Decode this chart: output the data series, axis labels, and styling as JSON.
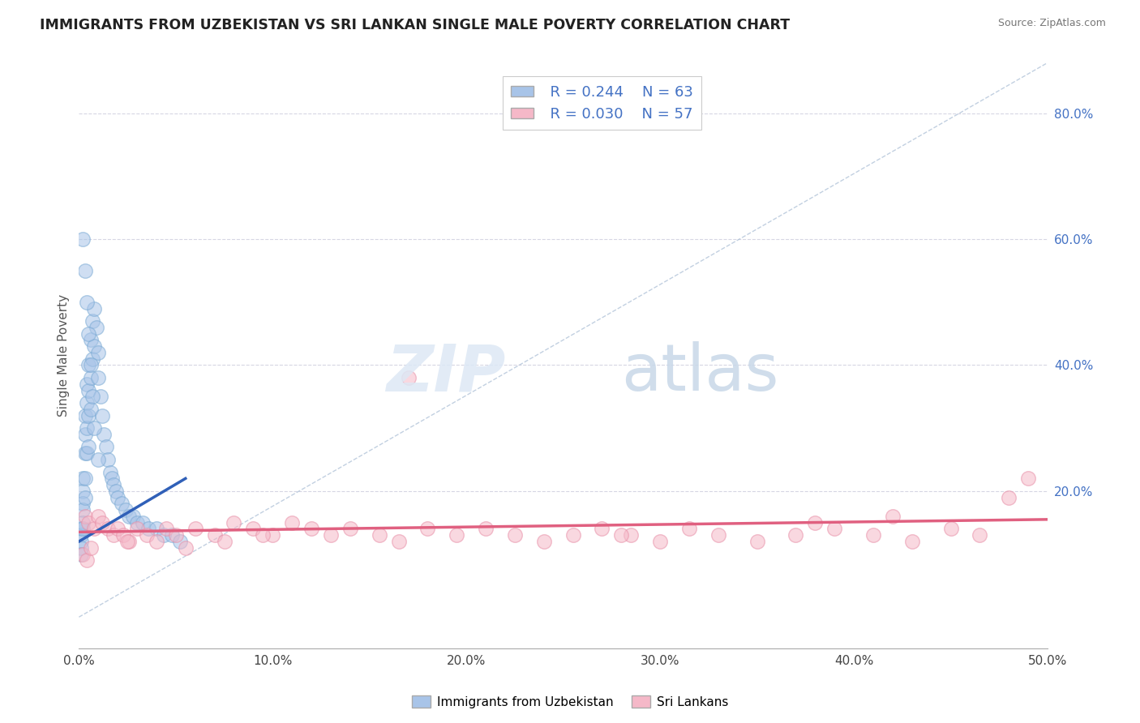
{
  "title": "IMMIGRANTS FROM UZBEKISTAN VS SRI LANKAN SINGLE MALE POVERTY CORRELATION CHART",
  "source": "Source: ZipAtlas.com",
  "ylabel": "Single Male Poverty",
  "xmin": 0.0,
  "xmax": 0.5,
  "ymin": -0.05,
  "ymax": 0.88,
  "legend_r1": "R = 0.244",
  "legend_n1": "N = 63",
  "legend_r2": "R = 0.030",
  "legend_n2": "N = 57",
  "color_blue_fill": "#a8c4e8",
  "color_blue_edge": "#7aaad4",
  "color_pink_fill": "#f5b8c8",
  "color_pink_edge": "#e890a8",
  "color_blue_line": "#3060b8",
  "color_pink_line": "#e06080",
  "color_diag": "#a8bcd4",
  "blue_x": [
    0.001,
    0.001,
    0.001,
    0.001,
    0.001,
    0.002,
    0.002,
    0.002,
    0.002,
    0.002,
    0.002,
    0.003,
    0.003,
    0.003,
    0.003,
    0.003,
    0.004,
    0.004,
    0.004,
    0.004,
    0.005,
    0.005,
    0.005,
    0.005,
    0.006,
    0.006,
    0.006,
    0.007,
    0.007,
    0.008,
    0.008,
    0.009,
    0.01,
    0.01,
    0.011,
    0.012,
    0.013,
    0.014,
    0.015,
    0.016,
    0.017,
    0.018,
    0.019,
    0.02,
    0.022,
    0.024,
    0.026,
    0.028,
    0.03,
    0.033,
    0.036,
    0.04,
    0.044,
    0.048,
    0.052,
    0.002,
    0.003,
    0.004,
    0.005,
    0.006,
    0.007,
    0.008,
    0.01
  ],
  "blue_y": [
    0.14,
    0.13,
    0.12,
    0.11,
    0.1,
    0.22,
    0.2,
    0.18,
    0.17,
    0.15,
    0.14,
    0.32,
    0.29,
    0.26,
    0.22,
    0.19,
    0.37,
    0.34,
    0.3,
    0.26,
    0.4,
    0.36,
    0.32,
    0.27,
    0.44,
    0.38,
    0.33,
    0.47,
    0.41,
    0.49,
    0.43,
    0.46,
    0.42,
    0.38,
    0.35,
    0.32,
    0.29,
    0.27,
    0.25,
    0.23,
    0.22,
    0.21,
    0.2,
    0.19,
    0.18,
    0.17,
    0.16,
    0.16,
    0.15,
    0.15,
    0.14,
    0.14,
    0.13,
    0.13,
    0.12,
    0.6,
    0.55,
    0.5,
    0.45,
    0.4,
    0.35,
    0.3,
    0.25
  ],
  "pink_x": [
    0.003,
    0.005,
    0.008,
    0.01,
    0.012,
    0.015,
    0.018,
    0.02,
    0.023,
    0.026,
    0.03,
    0.035,
    0.04,
    0.045,
    0.05,
    0.06,
    0.07,
    0.08,
    0.09,
    0.1,
    0.11,
    0.12,
    0.13,
    0.14,
    0.155,
    0.165,
    0.18,
    0.195,
    0.21,
    0.225,
    0.24,
    0.255,
    0.27,
    0.285,
    0.3,
    0.315,
    0.33,
    0.35,
    0.37,
    0.39,
    0.41,
    0.43,
    0.45,
    0.465,
    0.48,
    0.49,
    0.17,
    0.38,
    0.002,
    0.004,
    0.006,
    0.025,
    0.055,
    0.075,
    0.095,
    0.28,
    0.42
  ],
  "pink_y": [
    0.16,
    0.15,
    0.14,
    0.16,
    0.15,
    0.14,
    0.13,
    0.14,
    0.13,
    0.12,
    0.14,
    0.13,
    0.12,
    0.14,
    0.13,
    0.14,
    0.13,
    0.15,
    0.14,
    0.13,
    0.15,
    0.14,
    0.13,
    0.14,
    0.13,
    0.12,
    0.14,
    0.13,
    0.14,
    0.13,
    0.12,
    0.13,
    0.14,
    0.13,
    0.12,
    0.14,
    0.13,
    0.12,
    0.13,
    0.14,
    0.13,
    0.12,
    0.14,
    0.13,
    0.19,
    0.22,
    0.38,
    0.15,
    0.1,
    0.09,
    0.11,
    0.12,
    0.11,
    0.12,
    0.13,
    0.13,
    0.16
  ],
  "blue_trend_x": [
    0.0,
    0.055
  ],
  "blue_trend_y": [
    0.12,
    0.22
  ],
  "pink_trend_x": [
    0.0,
    0.5
  ],
  "pink_trend_y": [
    0.135,
    0.155
  ]
}
